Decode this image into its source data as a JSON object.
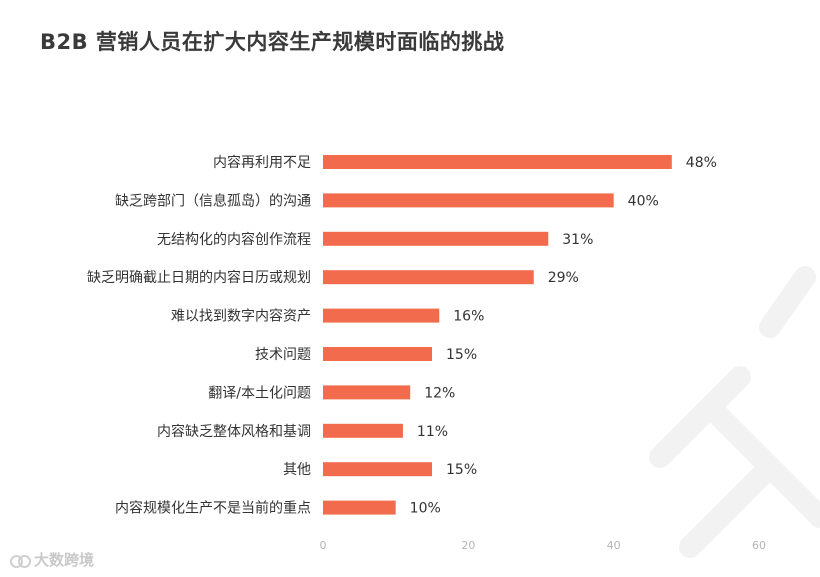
{
  "chart_data": {
    "type": "bar",
    "orientation": "horizontal",
    "title": "B2B 营销人员在扩大内容生产规模时面临的挑战",
    "categories": [
      "内容再利用不足",
      "缺乏跨部门（信息孤岛）的沟通",
      "无结构化的内容创作流程",
      "缺乏明确截止日期的内容日历或规划",
      "难以找到数字内容资产",
      "技术问题",
      "翻译/本土化问题",
      "内容缺乏整体风格和基调",
      "其他",
      "内容规模化生产不是当前的重点"
    ],
    "values": [
      48,
      40,
      31,
      29,
      16,
      15,
      12,
      11,
      15,
      10
    ],
    "data_labels": [
      "48%",
      "40%",
      "31%",
      "29%",
      "16%",
      "15%",
      "12%",
      "11%",
      "15%",
      "10%"
    ],
    "xlim": [
      0,
      60
    ],
    "xticks": [
      0,
      20,
      40,
      60
    ],
    "xtick_labels": [
      "0",
      "20",
      "40",
      "60"
    ],
    "grid": false,
    "bar_color": "#f26b4c"
  },
  "watermark": {
    "text": "大数跨境",
    "icon": "double-circle-logo-icon"
  }
}
